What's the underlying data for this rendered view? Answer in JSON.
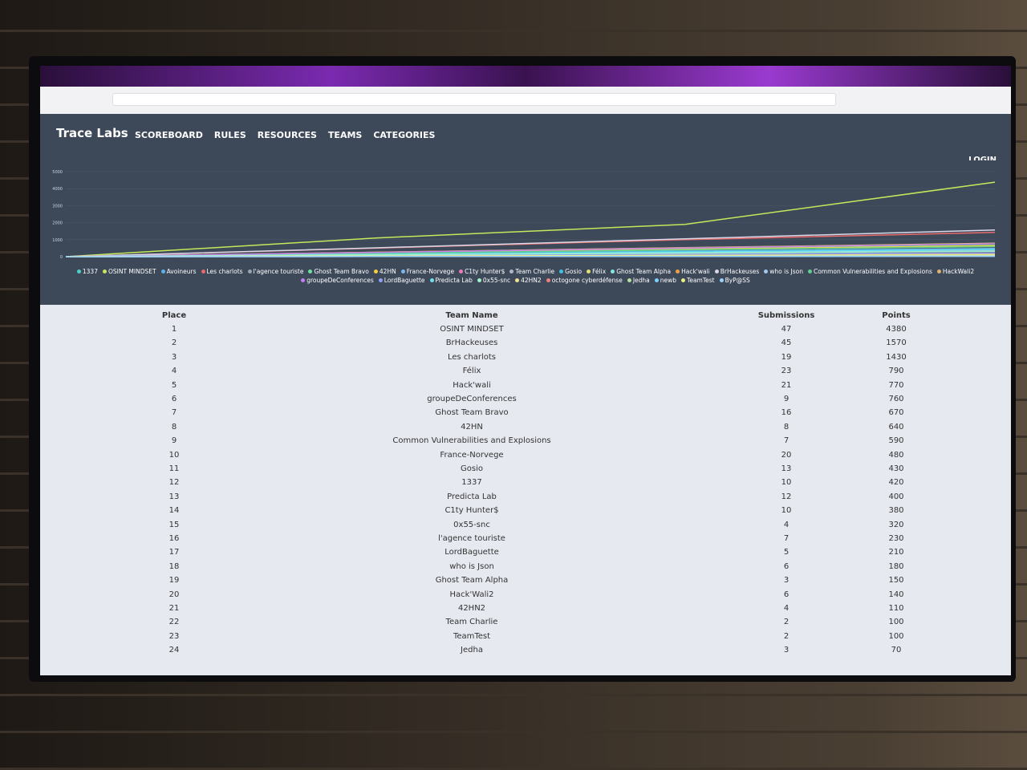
{
  "nav": {
    "brand": "Trace Labs",
    "links": [
      "SCOREBOARD",
      "RULES",
      "RESOURCES",
      "TEAMS",
      "CATEGORIES"
    ],
    "login": "LOGIN"
  },
  "chart_data": {
    "type": "line",
    "ylim": [
      0,
      5000
    ],
    "yticks": [
      0,
      1000,
      2000,
      3000,
      4000,
      5000
    ],
    "grid": true,
    "series": [
      {
        "name": "1337",
        "color": "#4dd0c8",
        "values": [
          0,
          150,
          300,
          420
        ]
      },
      {
        "name": "OSINT MINDSET",
        "color": "#c6e85a",
        "values": [
          0,
          1100,
          1900,
          4380
        ]
      },
      {
        "name": "Avoineurs",
        "color": "#5fb0e8",
        "values": [
          0,
          20,
          40,
          60
        ]
      },
      {
        "name": "Les charlots",
        "color": "#e86a6a",
        "values": [
          0,
          500,
          1000,
          1430
        ]
      },
      {
        "name": "l'agence touriste",
        "color": "#9aa3b0",
        "values": [
          0,
          80,
          160,
          230
        ]
      },
      {
        "name": "Ghost Team Bravo",
        "color": "#6ee0a0",
        "values": [
          0,
          230,
          460,
          670
        ]
      },
      {
        "name": "42HN",
        "color": "#f0d040",
        "values": [
          0,
          220,
          440,
          640
        ]
      },
      {
        "name": "France-Norvege",
        "color": "#7ab8f0",
        "values": [
          0,
          160,
          330,
          480
        ]
      },
      {
        "name": "C1ty Hunter$",
        "color": "#f07ab8",
        "values": [
          0,
          130,
          260,
          380
        ]
      },
      {
        "name": "Team Charlie",
        "color": "#b0b8c8",
        "values": [
          0,
          30,
          70,
          100
        ]
      },
      {
        "name": "Gosio",
        "color": "#40c0e0",
        "values": [
          0,
          150,
          300,
          430
        ]
      },
      {
        "name": "Félix",
        "color": "#e0e070",
        "values": [
          0,
          260,
          530,
          790
        ]
      },
      {
        "name": "Ghost Team Alpha",
        "color": "#80e8e0",
        "values": [
          0,
          50,
          100,
          150
        ]
      },
      {
        "name": "Hack'wali",
        "color": "#f0a040",
        "values": [
          0,
          260,
          520,
          770
        ]
      },
      {
        "name": "BrHackeuses",
        "color": "#d8d8e8",
        "values": [
          0,
          520,
          1050,
          1570
        ]
      },
      {
        "name": "who is Json",
        "color": "#a0c8f0",
        "values": [
          0,
          60,
          120,
          180
        ]
      },
      {
        "name": "Common Vulnerabilities and Explosions",
        "color": "#60d090",
        "values": [
          0,
          200,
          400,
          590
        ]
      },
      {
        "name": "HackWali2",
        "color": "#e0b070",
        "values": [
          0,
          50,
          90,
          140
        ]
      },
      {
        "name": "groupeDeConferences",
        "color": "#c080f0",
        "values": [
          0,
          250,
          510,
          760
        ]
      },
      {
        "name": "LordBaguette",
        "color": "#90a0f0",
        "values": [
          0,
          70,
          140,
          210
        ]
      },
      {
        "name": "Predicta Lab",
        "color": "#70e0f0",
        "values": [
          0,
          130,
          270,
          400
        ]
      },
      {
        "name": "0x55-snc",
        "color": "#a0f0d0",
        "values": [
          0,
          110,
          210,
          320
        ]
      },
      {
        "name": "42HN2",
        "color": "#f0e090",
        "values": [
          0,
          40,
          70,
          110
        ]
      },
      {
        "name": "octogone cyberdéfense",
        "color": "#f08080",
        "values": [
          0,
          10,
          20,
          30
        ]
      },
      {
        "name": "Jedha",
        "color": "#b8e0a0",
        "values": [
          0,
          20,
          50,
          70
        ]
      },
      {
        "name": "newb",
        "color": "#80d0ff",
        "values": [
          0,
          10,
          10,
          20
        ]
      },
      {
        "name": "TeamTest",
        "color": "#e8f080",
        "values": [
          0,
          30,
          70,
          100
        ]
      },
      {
        "name": "ByP@SS",
        "color": "#9ad0ff",
        "values": [
          0,
          10,
          20,
          40
        ]
      }
    ]
  },
  "table": {
    "headers": [
      "Place",
      "Team Name",
      "Submissions",
      "Points"
    ],
    "rows": [
      [
        "1",
        "OSINT MINDSET",
        "47",
        "4380"
      ],
      [
        "2",
        "BrHackeuses",
        "45",
        "1570"
      ],
      [
        "3",
        "Les charlots",
        "19",
        "1430"
      ],
      [
        "4",
        "Félix",
        "23",
        "790"
      ],
      [
        "5",
        "Hack'wali",
        "21",
        "770"
      ],
      [
        "6",
        "groupeDeConferences",
        "9",
        "760"
      ],
      [
        "7",
        "Ghost Team Bravo",
        "16",
        "670"
      ],
      [
        "8",
        "42HN",
        "8",
        "640"
      ],
      [
        "9",
        "Common Vulnerabilities and Explosions",
        "7",
        "590"
      ],
      [
        "10",
        "France-Norvege",
        "20",
        "480"
      ],
      [
        "11",
        "Gosio",
        "13",
        "430"
      ],
      [
        "12",
        "1337",
        "10",
        "420"
      ],
      [
        "13",
        "Predicta Lab",
        "12",
        "400"
      ],
      [
        "14",
        "C1ty Hunter$",
        "10",
        "380"
      ],
      [
        "15",
        "0x55-snc",
        "4",
        "320"
      ],
      [
        "16",
        "l'agence touriste",
        "7",
        "230"
      ],
      [
        "17",
        "LordBaguette",
        "5",
        "210"
      ],
      [
        "18",
        "who is Json",
        "6",
        "180"
      ],
      [
        "19",
        "Ghost Team Alpha",
        "3",
        "150"
      ],
      [
        "20",
        "Hack'Wali2",
        "6",
        "140"
      ],
      [
        "21",
        "42HN2",
        "4",
        "110"
      ],
      [
        "22",
        "Team Charlie",
        "2",
        "100"
      ],
      [
        "23",
        "TeamTest",
        "2",
        "100"
      ],
      [
        "24",
        "Jedha",
        "3",
        "70"
      ]
    ]
  }
}
